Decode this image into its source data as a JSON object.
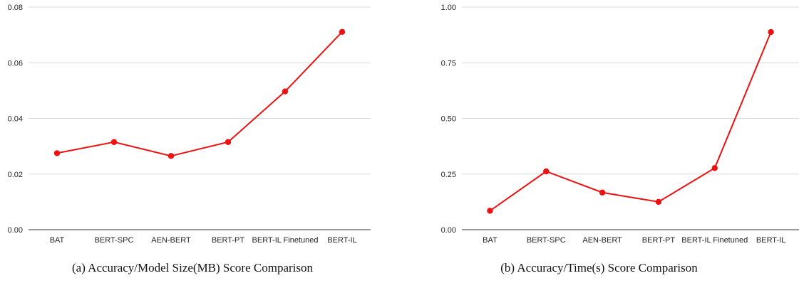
{
  "chart_data": [
    {
      "type": "line",
      "title": "",
      "xlabel": "",
      "ylabel": "",
      "caption": "(a) Accuracy/Model Size(MB) Score Comparison",
      "categories": [
        "BAT",
        "BERT-SPC",
        "AEN-BERT",
        "BERT-PT",
        "BERT-IL Finetuned",
        "BERT-IL"
      ],
      "series": [
        {
          "values": [
            0.0275,
            0.0315,
            0.0265,
            0.0315,
            0.0497,
            0.0711
          ],
          "color": "#ee1111"
        }
      ],
      "yticks": [
        "0.00",
        "0.02",
        "0.04",
        "0.06",
        "0.08"
      ],
      "ytick_values": [
        0,
        0.02,
        0.04,
        0.06,
        0.08
      ],
      "ylim": [
        0,
        0.08
      ],
      "grid": true,
      "gridline_color": "#d9d9d9"
    },
    {
      "type": "line",
      "title": "",
      "xlabel": "",
      "ylabel": "",
      "caption": "(b) Accuracy/Time(s) Score Comparison",
      "categories": [
        "BAT",
        "BERT-SPC",
        "AEN-BERT",
        "BERT-PT",
        "BERT-IL Finetuned",
        "BERT-IL"
      ],
      "series": [
        {
          "values": [
            0.085,
            0.262,
            0.167,
            0.125,
            0.277,
            0.888
          ],
          "color": "#ee1111"
        }
      ],
      "yticks": [
        "0.00",
        "0.25",
        "0.50",
        "0.75",
        "1.00"
      ],
      "ytick_values": [
        0,
        0.25,
        0.5,
        0.75,
        1.0
      ],
      "ylim": [
        0,
        1.0
      ],
      "grid": true,
      "gridline_color": "#d9d9d9"
    }
  ]
}
